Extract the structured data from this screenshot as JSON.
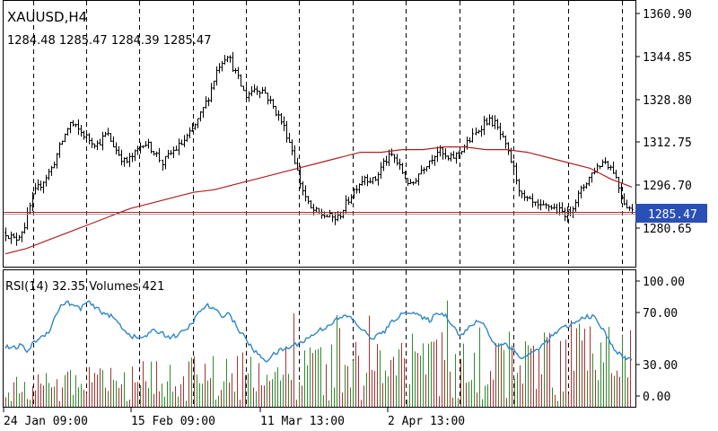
{
  "chart_data": {
    "type": "candlestick",
    "symbol": "XAUUSD",
    "timeframe": "H4",
    "ohlc": {
      "open": "1284.48",
      "high": "1285.47",
      "low": "1284.39",
      "close": "1285.47"
    },
    "price_axis": {
      "ticks": [
        "1360.90",
        "1344.85",
        "1328.80",
        "1312.75",
        "1296.70",
        "1280.65"
      ],
      "range": [
        1275.5,
        1360.9
      ]
    },
    "current_price": "1285.47",
    "time_axis": [
      "24 Jan 09:00",
      "15 Feb 09:00",
      "11 Mar 13:00",
      "2 Apr 13:00"
    ],
    "price_path": [
      1279,
      1276,
      1281,
      1293,
      1298,
      1303,
      1312,
      1320,
      1317,
      1314,
      1312,
      1316,
      1310,
      1305,
      1308,
      1313,
      1310,
      1305,
      1309,
      1312,
      1316,
      1322,
      1330,
      1341,
      1346,
      1338,
      1330,
      1333,
      1332,
      1326,
      1320,
      1311,
      1297,
      1288,
      1286,
      1285,
      1284,
      1290,
      1296,
      1300,
      1298,
      1305,
      1308,
      1302,
      1296,
      1302,
      1306,
      1310,
      1306,
      1308,
      1312,
      1316,
      1321,
      1320,
      1313,
      1304,
      1292,
      1290,
      1288,
      1289,
      1287,
      1286,
      1292,
      1298,
      1303,
      1306,
      1302,
      1291,
      1287
    ],
    "moving_average": [
      1271,
      1273,
      1276,
      1279,
      1282,
      1285,
      1288,
      1290,
      1292,
      1294,
      1295,
      1297,
      1299,
      1301,
      1303,
      1305,
      1307,
      1309,
      1309,
      1310,
      1310,
      1311,
      1311,
      1310,
      1310,
      1309,
      1307,
      1305,
      1303,
      1299,
      1296
    ],
    "indicator": {
      "label": "RSI(14) 32.35 Volumes 421",
      "ticks": [
        "100.00",
        "70.00",
        "30.00",
        "0.00"
      ],
      "range": [
        0,
        100
      ],
      "rsi": [
        43,
        41,
        44,
        39,
        48,
        52,
        58,
        74,
        82,
        79,
        76,
        82,
        77,
        73,
        70,
        65,
        57,
        52,
        50,
        53,
        57,
        55,
        51,
        53,
        56,
        63,
        73,
        79,
        75,
        70,
        72,
        60,
        52,
        42,
        35,
        31,
        36,
        40,
        42,
        45,
        48,
        52,
        57,
        60,
        65,
        68,
        70,
        63,
        57,
        50,
        53,
        57,
        66,
        70,
        74,
        72,
        67,
        66,
        73,
        70,
        62,
        52,
        58,
        64,
        65,
        51,
        43,
        46,
        41,
        33,
        35,
        39,
        44,
        50,
        56,
        60,
        62,
        66,
        70,
        68,
        59,
        48,
        38,
        33,
        32
      ]
    }
  }
}
